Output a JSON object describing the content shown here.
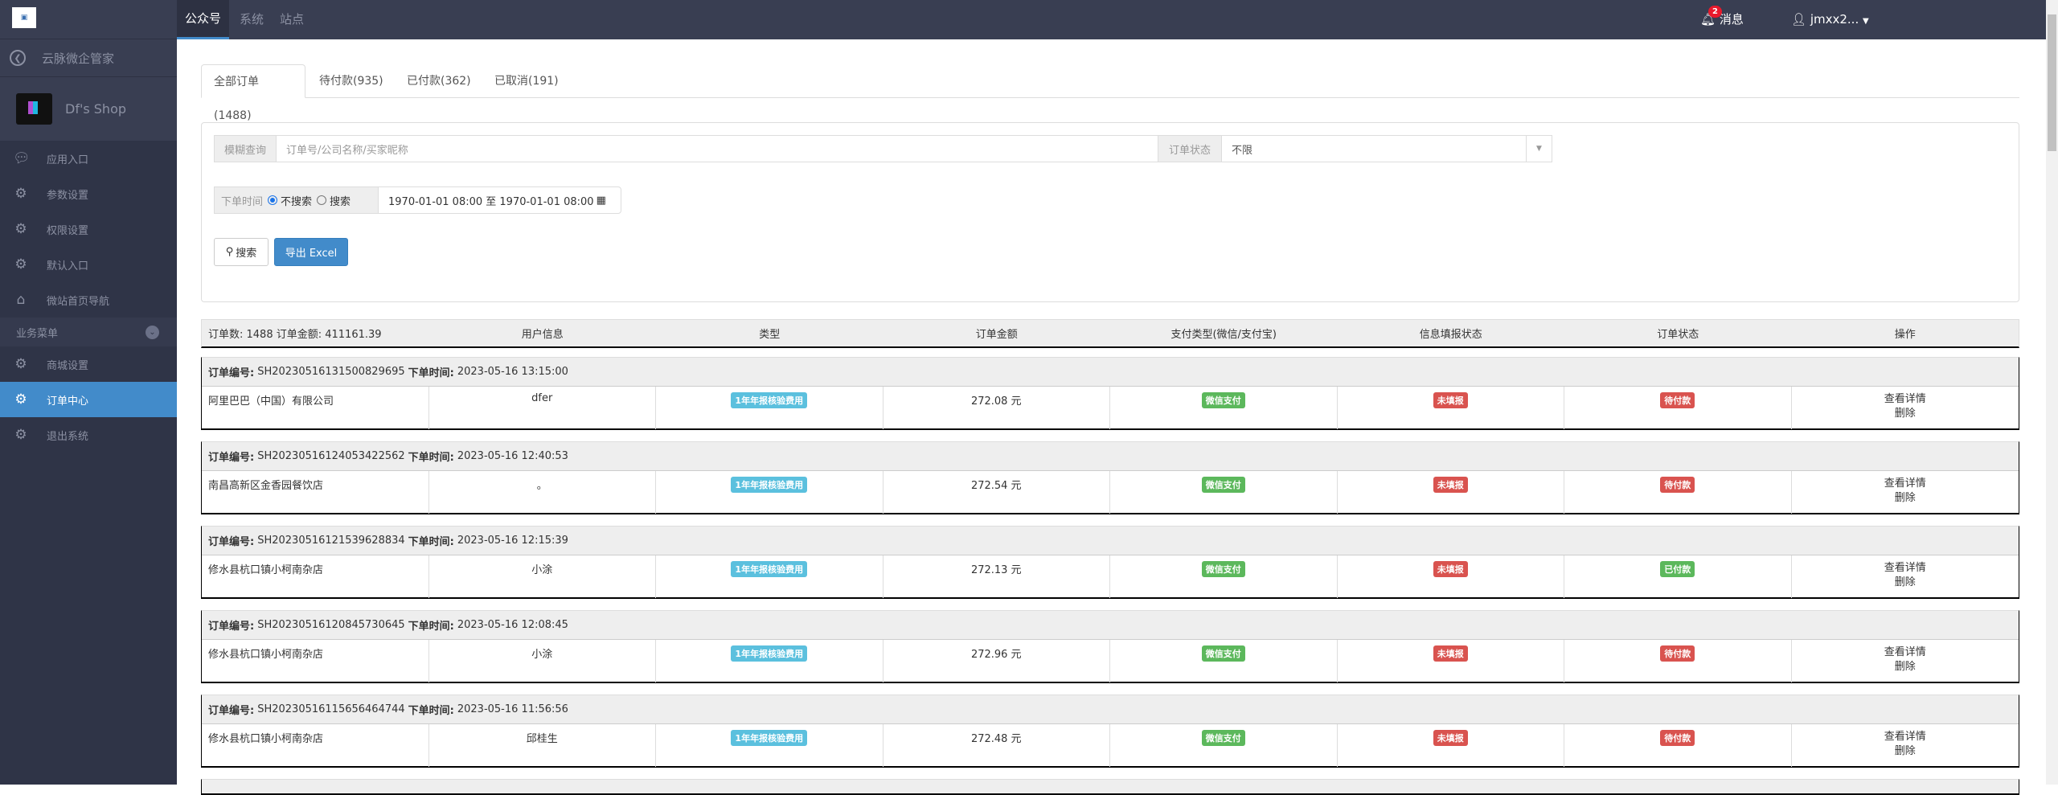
{
  "topbar": {
    "tabs": [
      "公众号",
      "系统",
      "站点"
    ],
    "active": 0,
    "messages_label": "消息",
    "messages_count": "2",
    "user": "jmxx2..."
  },
  "sidebar": {
    "logo_text": "云脉",
    "app_name": "云脉微企管家",
    "shop_name": "Df's Shop",
    "items": [
      {
        "label": "应用入口",
        "icon": "chat-icon"
      },
      {
        "label": "参数设置",
        "icon": "gear-icon"
      },
      {
        "label": "权限设置",
        "icon": "gear-icon"
      },
      {
        "label": "默认入口",
        "icon": "gear-icon"
      },
      {
        "label": "微站首页导航",
        "icon": "home-icon"
      }
    ],
    "group_label": "业务菜单",
    "group_items": [
      {
        "label": "商城设置",
        "icon": "gear-icon"
      },
      {
        "label": "订单中心",
        "icon": "gear-icon",
        "active": true
      },
      {
        "label": "退出系统",
        "icon": "gear-icon"
      }
    ]
  },
  "tabs": [
    "全部订单(1488)",
    "待付款(935)",
    "已付款(362)",
    "已取消(191)"
  ],
  "filters": {
    "fuzzy_label": "模糊查询",
    "fuzzy_placeholder": "订单号/公司名称/买家昵称",
    "status_label": "订单状态",
    "status_value": "不限",
    "time_label": "下单时间",
    "radio_no": "不搜索",
    "radio_yes": "搜索",
    "date_range": "1970-01-01 08:00 至 1970-01-01 08:00",
    "search_btn": "搜索",
    "export_btn": "导出 Excel"
  },
  "table": {
    "summary": "订单数: 1488 订单金额: 411161.39",
    "columns": [
      "用户信息",
      "类型",
      "订单金额",
      "支付类型(微信/支付宝)",
      "信息填报状态",
      "订单状态",
      "操作"
    ],
    "order_no_label": "订单编号:",
    "time_label": "下单时间:",
    "view_label": "查看详情",
    "delete_label": "删除"
  },
  "colors": {
    "info": "#5bc0de",
    "success": "#5cb85c",
    "danger": "#d9534f",
    "primary": "#428bca"
  },
  "orders": [
    {
      "no": "SH20230516131500829695",
      "time": "2023-05-16 13:15:00",
      "company": "阿里巴巴（中国）有限公司",
      "user": "dfer",
      "type": "1年年报核验费用",
      "amount": "272.08 元",
      "pay": "微信支付",
      "info_status": "未填报",
      "order_status": "待付款",
      "order_status_color": "danger"
    },
    {
      "no": "SH20230516124053422562",
      "time": "2023-05-16 12:40:53",
      "company": "南昌高新区金香园餐饮店",
      "user": "。",
      "type": "1年年报核验费用",
      "amount": "272.54 元",
      "pay": "微信支付",
      "info_status": "未填报",
      "order_status": "待付款",
      "order_status_color": "danger"
    },
    {
      "no": "SH20230516121539628834",
      "time": "2023-05-16 12:15:39",
      "company": "修水县杭口镇小柯南杂店",
      "user": "小涂",
      "type": "1年年报核验费用",
      "amount": "272.13 元",
      "pay": "微信支付",
      "info_status": "未填报",
      "order_status": "已付款",
      "order_status_color": "success"
    },
    {
      "no": "SH20230516120845730645",
      "time": "2023-05-16 12:08:45",
      "company": "修水县杭口镇小柯南杂店",
      "user": "小涂",
      "type": "1年年报核验费用",
      "amount": "272.96 元",
      "pay": "微信支付",
      "info_status": "未填报",
      "order_status": "待付款",
      "order_status_color": "danger"
    },
    {
      "no": "SH20230516115656464744",
      "time": "2023-05-16 11:56:56",
      "company": "修水县杭口镇小柯南杂店",
      "user": "邱桂生",
      "type": "1年年报核验费用",
      "amount": "272.48 元",
      "pay": "微信支付",
      "info_status": "未填报",
      "order_status": "待付款",
      "order_status_color": "danger"
    }
  ]
}
